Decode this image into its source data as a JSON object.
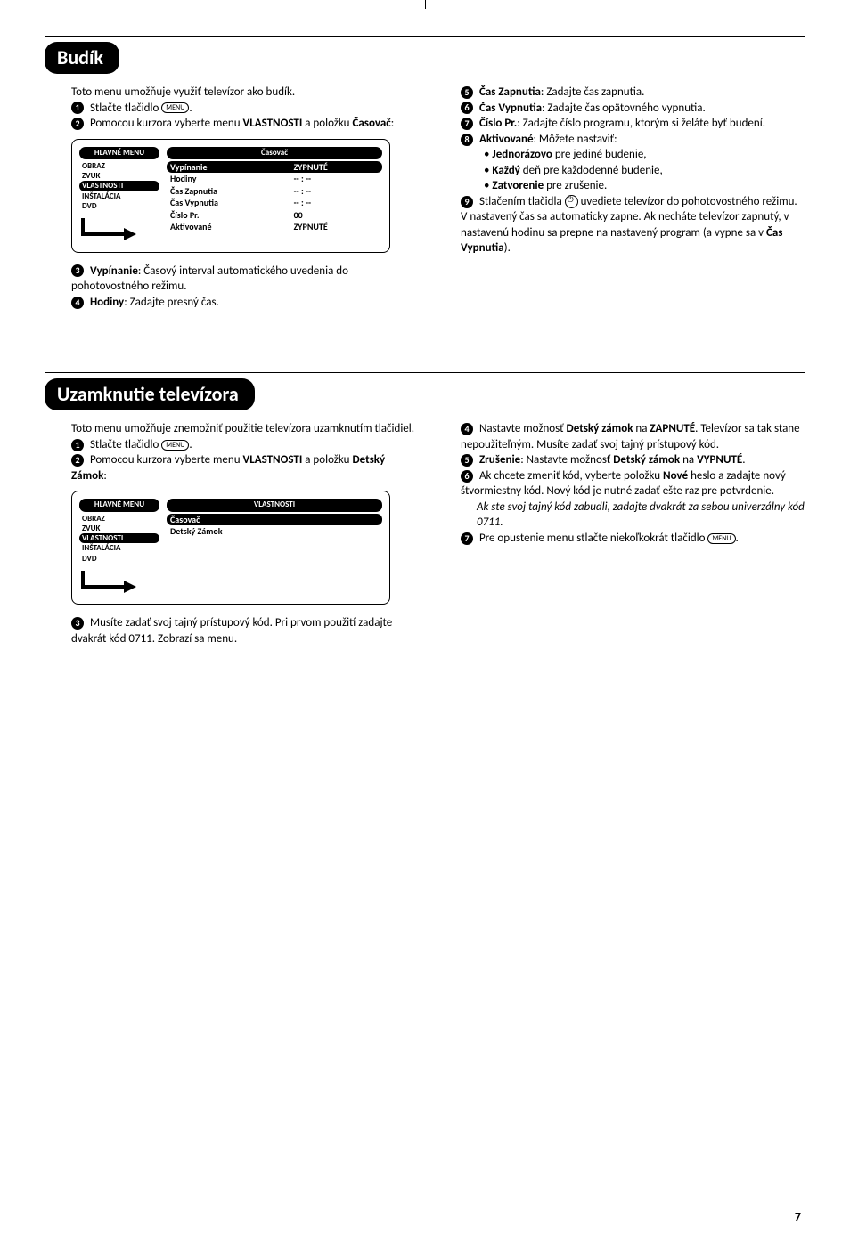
{
  "budik": {
    "title": "Budík",
    "intro": "Toto menu umožňuje využiť televízor ako budík.",
    "step1": "Stlačte tlačidlo",
    "menu_key": "MENU",
    "step2a": "Pomocou kurzora vyberte menu",
    "step2b": "VLASTNOSTI",
    "step2c": "a položku",
    "step2d": "Časovač",
    "menu": {
      "header_left": "HLAVNÉ MENU",
      "items": [
        "OBRAZ",
        "ZVUK",
        "VLASTNOSTI",
        "INŠTALÁCIA",
        "DVD"
      ],
      "sel_index": 2,
      "header_right": "Časovač",
      "rows": [
        {
          "l": "Vypínanie",
          "r": "ZYPNUTÉ",
          "sel": true
        },
        {
          "l": "Hodiny",
          "r": "-- : --"
        },
        {
          "l": "Čas Zapnutia",
          "r": "-- : --"
        },
        {
          "l": "Čas Vypnutia",
          "r": "-- : --"
        },
        {
          "l": "Číslo Pr.",
          "r": "00"
        },
        {
          "l": "Aktivované",
          "r": "ZYPNUTÉ"
        }
      ]
    },
    "step3a": "Vypínanie",
    "step3b": ": Časový interval automatického uvedenia do pohotovostného režimu.",
    "step4a": "Hodiny",
    "step4b": ": Zadajte presný čas.",
    "step5a": "Čas Zapnutia",
    "step5b": ": Zadajte čas zapnutia.",
    "step6a": "Čas Vypnutia",
    "step6b": ": Zadajte čas opätovného vypnutia.",
    "step7a": "Číslo Pr.",
    "step7b": ": Zadajte číslo programu, ktorým si želáte byť budení.",
    "step8a": "Aktivované",
    "step8b": ": Môžete nastaviť:",
    "step8_j": "Jednorázovo",
    "step8_j2": " pre jediné budenie,",
    "step8_k": "Každý",
    "step8_k2": " deň pre každodenné budenie,",
    "step8_z": "Zatvorenie",
    "step8_z2": " pre zrušenie.",
    "step9a": "Stlačením tlačidla ",
    "step9b": " uvediete televízor do pohotovostného režimu. V nastavený čas sa automaticky zapne. Ak necháte televízor zapnutý, v nastavenú hodinu sa prepne na nastavený program (a vypne sa v ",
    "step9c": "Čas Vypnutia",
    "step9d": ")."
  },
  "lock": {
    "title": "Uzamknutie televízora",
    "intro": "Toto menu umožňuje znemožniť použitie televízora uzamknutím tlačidiel.",
    "step1": "Stlačte tlačidlo",
    "menu_key": "MENU",
    "step2a": "Pomocou kurzora vyberte menu",
    "step2b": "VLASTNOSTI",
    "step2c": "a položku",
    "step2d": "Detský Zámok",
    "menu": {
      "header_left": "HLAVNÉ MENU",
      "items": [
        "OBRAZ",
        "ZVUK",
        "VLASTNOSTI",
        "INŠTALÁCIA",
        "DVD"
      ],
      "sel_index": 2,
      "header_right": "VLASTNOSTI",
      "rows": [
        {
          "l": "Časovač",
          "r": "",
          "sel": true
        },
        {
          "l": "Detský Zámok",
          "r": ""
        }
      ]
    },
    "step3": "Musíte zadať svoj tajný prístupový kód. Pri prvom použití zadajte dvakrát kód 0711. Zobrazí sa menu.",
    "step4a": "Nastavte možnosť ",
    "step4b": "Detský zámok",
    "step4c": " na ",
    "step4d": "ZAPNUTÉ",
    "step4e": ". Televízor sa tak stane nepoužiteľným. Musíte zadať svoj tajný prístupový kód.",
    "step5a": "Zrušenie",
    "step5b": ": Nastavte možnosť ",
    "step5c": "Detský zámok",
    "step5d": " na ",
    "step5e": "VYPNUTÉ",
    "step6a": "Ak chcete zmeniť kód, vyberte položku ",
    "step6b": "Nové",
    "step6c": " heslo a zadajte nový štvormiestny kód. Nový kód je nutné zadať ešte raz pre potvrdenie.",
    "step6_it": "Ak ste svoj tajný kód zabudli, zadajte dvakrát za sebou univerzálny kód 0711.",
    "step7a": "Pre opustenie menu stlačte niekoľkokrát tlačidlo ",
    "step7_key": "MENU"
  },
  "page": "7"
}
